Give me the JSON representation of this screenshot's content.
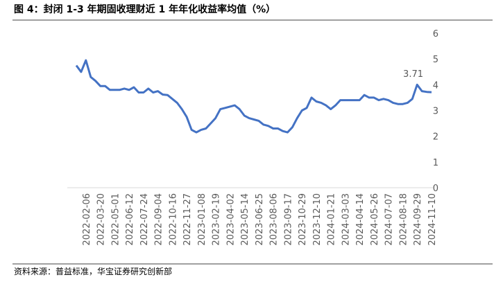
{
  "title": "图 4：封闭 1-3 年期固收理财近 1 年年化收益率均值（%）",
  "source": "资料来源：普益标准，华宝证券研究创新部",
  "chart_data": {
    "type": "line",
    "color": "#4472c4",
    "categories": [
      null,
      null,
      "2022-02-06",
      null,
      null,
      "2022-03-20",
      null,
      null,
      "2022-05-01",
      null,
      null,
      "2022-06-12",
      null,
      null,
      "2022-07-24",
      null,
      null,
      "2022-09-04",
      null,
      null,
      "2022-10-16",
      null,
      null,
      "2022-11-27",
      null,
      null,
      "2023-01-08",
      null,
      null,
      "2023-02-19",
      null,
      null,
      "2023-04-02",
      null,
      null,
      "2023-05-14",
      null,
      null,
      "2023-06-25",
      null,
      null,
      "2023-08-06",
      null,
      null,
      "2023-09-17",
      null,
      null,
      "2023-10-29",
      null,
      null,
      "2023-12-10",
      null,
      null,
      "2024-01-21",
      null,
      null,
      "2024-03-03",
      null,
      null,
      "2024-04-14",
      null,
      null,
      "2024-05-26",
      null,
      null,
      "2024-07-07",
      null,
      null,
      "2024-08-18",
      null,
      null,
      "2024-09-29",
      null,
      null,
      "2024-11-10"
    ],
    "values": [
      4.75,
      4.5,
      4.95,
      4.3,
      4.15,
      3.95,
      3.95,
      3.8,
      3.8,
      3.8,
      3.85,
      3.8,
      3.9,
      3.7,
      3.7,
      3.85,
      3.7,
      3.75,
      3.62,
      3.6,
      3.45,
      3.3,
      3.05,
      2.75,
      2.25,
      2.15,
      2.25,
      2.3,
      2.5,
      2.7,
      3.05,
      3.1,
      3.15,
      3.2,
      3.05,
      2.8,
      2.7,
      2.65,
      2.6,
      2.45,
      2.4,
      2.3,
      2.3,
      2.2,
      2.15,
      2.35,
      2.7,
      3.0,
      3.1,
      3.5,
      3.35,
      3.3,
      3.2,
      3.05,
      3.2,
      3.4,
      3.4,
      3.4,
      3.4,
      3.4,
      3.6,
      3.5,
      3.5,
      3.4,
      3.45,
      3.4,
      3.3,
      3.25,
      3.25,
      3.3,
      3.45,
      4.0,
      3.75,
      3.72,
      3.71
    ],
    "ylim": [
      0,
      6
    ],
    "yticks": [
      0,
      1,
      2,
      3,
      4,
      5,
      6
    ],
    "grid": false
  }
}
